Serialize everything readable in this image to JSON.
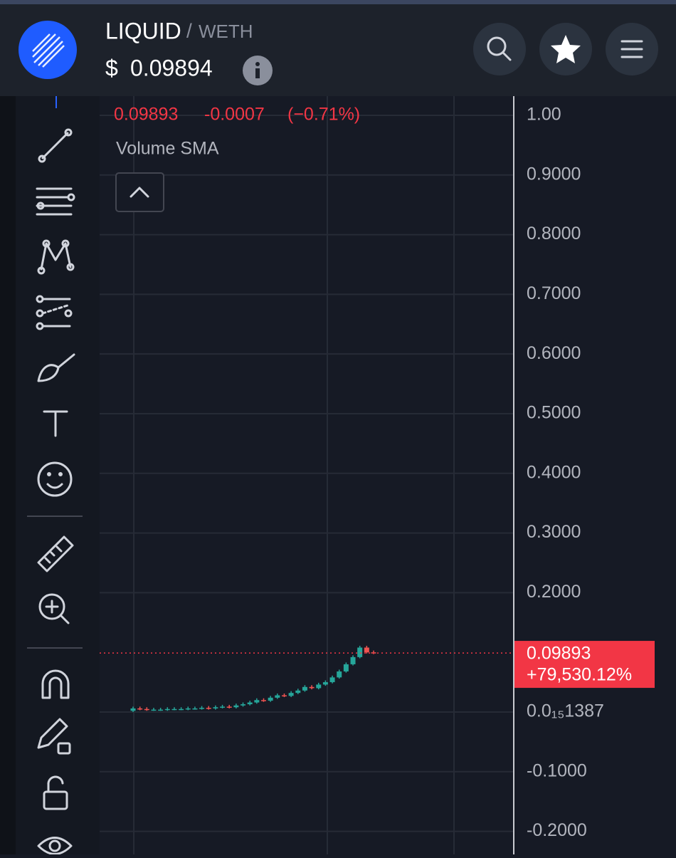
{
  "header": {
    "base": "LIQUID",
    "separator": "/",
    "quote": "WETH",
    "currency": "$",
    "price": "0.09894"
  },
  "legend": {
    "close": 0.09893,
    "change": -0.0007,
    "change_pct": "(−0.71%)",
    "indicator": "Volume SMA"
  },
  "chart_data": {
    "type": "candlestick",
    "open": [
      0.002,
      0.006,
      0.005,
      0.004,
      0.004,
      0.004,
      0.005,
      0.005,
      0.005,
      0.006,
      0.006,
      0.007,
      0.006,
      0.008,
      0.009,
      0.008,
      0.011,
      0.013,
      0.016,
      0.02,
      0.019,
      0.024,
      0.028,
      0.027,
      0.032,
      0.036,
      0.042,
      0.04,
      0.046,
      0.05,
      0.058,
      0.068,
      0.08,
      0.092,
      0.108,
      0.1
    ],
    "high": [
      0.009,
      0.009,
      0.008,
      0.007,
      0.007,
      0.008,
      0.008,
      0.008,
      0.009,
      0.009,
      0.01,
      0.01,
      0.011,
      0.012,
      0.012,
      0.014,
      0.016,
      0.019,
      0.023,
      0.023,
      0.027,
      0.031,
      0.031,
      0.035,
      0.039,
      0.045,
      0.045,
      0.049,
      0.053,
      0.061,
      0.071,
      0.083,
      0.095,
      0.111,
      0.111,
      0.103
    ],
    "low": [
      0.0,
      0.003,
      0.002,
      0.002,
      0.002,
      0.002,
      0.003,
      0.003,
      0.003,
      0.004,
      0.004,
      0.004,
      0.004,
      0.006,
      0.006,
      0.006,
      0.009,
      0.011,
      0.014,
      0.017,
      0.017,
      0.022,
      0.025,
      0.025,
      0.03,
      0.034,
      0.038,
      0.038,
      0.044,
      0.048,
      0.056,
      0.066,
      0.078,
      0.09,
      0.098,
      0.097
    ],
    "close": [
      0.006,
      0.005,
      0.004,
      0.004,
      0.004,
      0.005,
      0.005,
      0.005,
      0.006,
      0.006,
      0.007,
      0.006,
      0.008,
      0.009,
      0.008,
      0.011,
      0.013,
      0.016,
      0.02,
      0.019,
      0.024,
      0.028,
      0.027,
      0.032,
      0.036,
      0.042,
      0.04,
      0.046,
      0.05,
      0.058,
      0.068,
      0.08,
      0.092,
      0.108,
      0.1,
      0.099
    ],
    "up_color": "#26a69a",
    "down_color": "#ef5350",
    "ylim": [
      -0.2387,
      1.0322
    ],
    "yticks": [
      {
        "value": 1,
        "label": "1.00"
      },
      {
        "value": 0.9,
        "label": "0.9000"
      },
      {
        "value": 0.8,
        "label": "0.8000"
      },
      {
        "value": 0.7,
        "label": "0.7000"
      },
      {
        "value": 0.6,
        "label": "0.6000"
      },
      {
        "value": 0.5,
        "label": "0.5000"
      },
      {
        "value": 0.4,
        "label": "0.4000"
      },
      {
        "value": 0.3,
        "label": "0.3000"
      },
      {
        "value": 0.2,
        "label": "0.2000"
      },
      {
        "value": 1.387e-16,
        "label": "0.0₁₅1387"
      },
      {
        "value": -0.1,
        "label": "-0.1000"
      },
      {
        "value": -0.2,
        "label": "-0.2000"
      }
    ],
    "grid": true,
    "last_price": 0.09893,
    "last_change_pct": "+79,530.12%",
    "last_color": "#f23645"
  }
}
